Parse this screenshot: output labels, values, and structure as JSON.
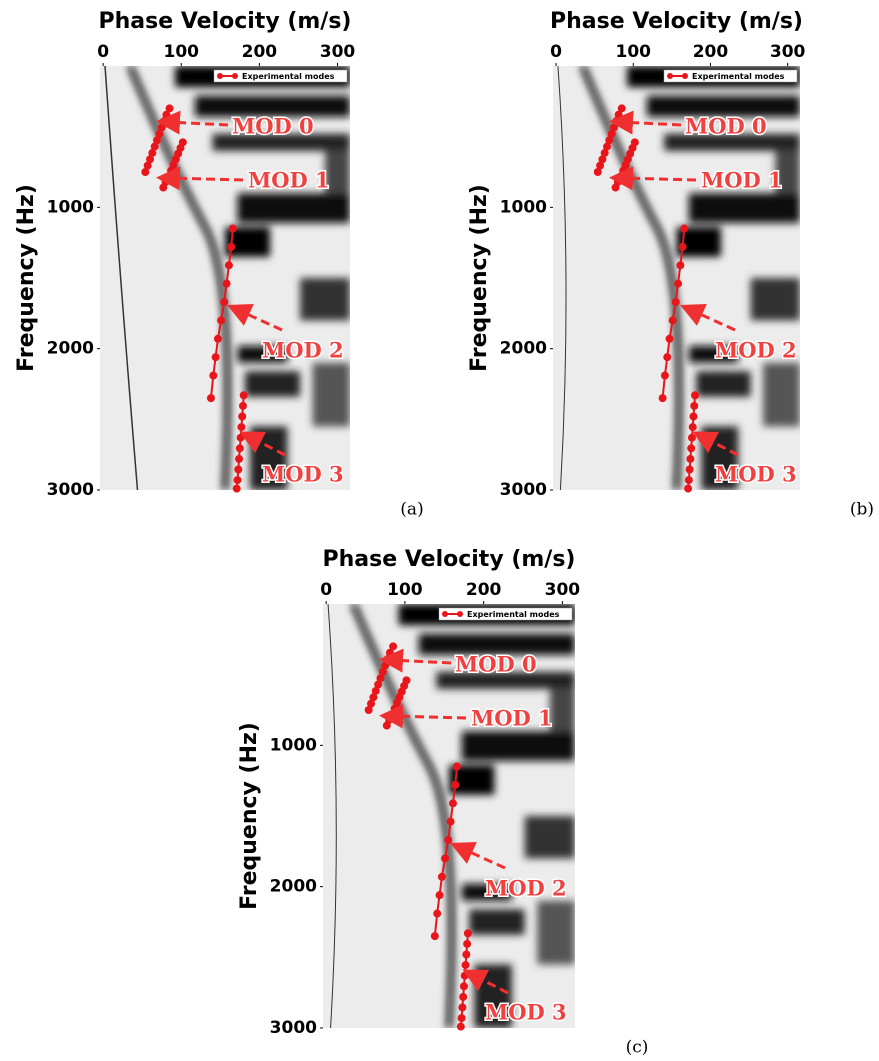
{
  "chart_data": [
    {
      "type": "line",
      "x_label": "Phase Velocity (m/s)",
      "y_label": "Frequency (Hz)",
      "panel_label": "(a)",
      "xlim": [
        -4,
        316
      ],
      "ylim": [
        0,
        3000
      ],
      "xticks": [
        0,
        100,
        200,
        300
      ],
      "yticks": [
        1000,
        2000,
        3000
      ],
      "y_inverted": true,
      "legend": "upper right",
      "markers": true,
      "series": [
        {
          "name": "Experimental modes",
          "color": "#e8161b",
          "x": [
            85,
            81,
            78,
            75,
            72,
            69,
            66,
            63,
            60,
            57,
            54,
            null,
            102,
            99,
            96,
            93,
            90,
            87,
            84,
            80,
            77,
            null,
            166,
            164,
            161,
            158,
            155,
            151,
            147,
            144,
            141,
            138,
            null,
            180,
            179,
            178,
            177,
            176,
            175,
            174,
            173,
            172,
            171
          ],
          "values": [
            300,
            345,
            390,
            435,
            480,
            525,
            570,
            615,
            660,
            705,
            750,
            null,
            540,
            580,
            620,
            660,
            700,
            740,
            780,
            820,
            860,
            null,
            1150,
            1280,
            1410,
            1540,
            1670,
            1800,
            1930,
            2060,
            2190,
            2350,
            null,
            2330,
            2405,
            2480,
            2555,
            2630,
            2705,
            2780,
            2855,
            2930,
            2990
          ]
        }
      ],
      "annotations": [
        "MOD 0",
        "MOD 1",
        "MOD 2",
        "MOD 3"
      ]
    },
    {
      "type": "line",
      "x_label": "Phase Velocity (m/s)",
      "y_label": "Frequency (Hz)",
      "panel_label": "(b)",
      "xlim": [
        -4,
        316
      ],
      "ylim": [
        0,
        3000
      ],
      "xticks": [
        0,
        100,
        200,
        300
      ],
      "yticks": [
        1000,
        2000,
        3000
      ],
      "y_inverted": true,
      "legend": "upper right",
      "markers": true,
      "series": [
        {
          "name": "Experimental modes",
          "color": "#e8161b",
          "x": [
            85,
            81,
            78,
            75,
            72,
            69,
            66,
            63,
            60,
            57,
            54,
            null,
            102,
            99,
            96,
            93,
            90,
            87,
            84,
            80,
            77,
            null,
            166,
            164,
            161,
            158,
            155,
            151,
            147,
            144,
            141,
            138,
            null,
            180,
            179,
            178,
            177,
            176,
            175,
            174,
            173,
            172,
            171
          ],
          "values": [
            300,
            345,
            390,
            435,
            480,
            525,
            570,
            615,
            660,
            705,
            750,
            null,
            540,
            580,
            620,
            660,
            700,
            740,
            780,
            820,
            860,
            null,
            1150,
            1280,
            1410,
            1540,
            1670,
            1800,
            1930,
            2060,
            2190,
            2350,
            null,
            2330,
            2405,
            2480,
            2555,
            2630,
            2705,
            2780,
            2855,
            2930,
            2990
          ]
        }
      ],
      "annotations": [
        "MOD 0",
        "MOD 1",
        "MOD 2",
        "MOD 3"
      ]
    },
    {
      "type": "line",
      "x_label": "Phase Velocity (m/s)",
      "y_label": "Frequency (Hz)",
      "panel_label": "(c)",
      "xlim": [
        -4,
        316
      ],
      "ylim": [
        0,
        3000
      ],
      "xticks": [
        0,
        100,
        200,
        300
      ],
      "yticks": [
        1000,
        2000,
        3000
      ],
      "y_inverted": true,
      "legend": "upper right",
      "markers": true,
      "series": [
        {
          "name": "Experimental modes",
          "color": "#e8161b",
          "x": [
            85,
            81,
            78,
            75,
            72,
            69,
            66,
            63,
            60,
            57,
            54,
            null,
            102,
            99,
            96,
            93,
            90,
            87,
            84,
            80,
            77,
            null,
            166,
            164,
            161,
            158,
            155,
            151,
            147,
            144,
            141,
            138,
            null,
            180,
            179,
            178,
            177,
            176,
            175,
            174,
            173,
            172,
            171
          ],
          "values": [
            300,
            345,
            390,
            435,
            480,
            525,
            570,
            615,
            660,
            705,
            750,
            null,
            540,
            580,
            620,
            660,
            700,
            740,
            780,
            820,
            860,
            null,
            1150,
            1280,
            1410,
            1540,
            1670,
            1800,
            1930,
            2060,
            2190,
            2350,
            null,
            2330,
            2405,
            2480,
            2555,
            2630,
            2705,
            2780,
            2855,
            2930,
            2990
          ]
        }
      ],
      "annotations": [
        "MOD 0",
        "MOD 1",
        "MOD 2",
        "MOD 3"
      ]
    }
  ]
}
